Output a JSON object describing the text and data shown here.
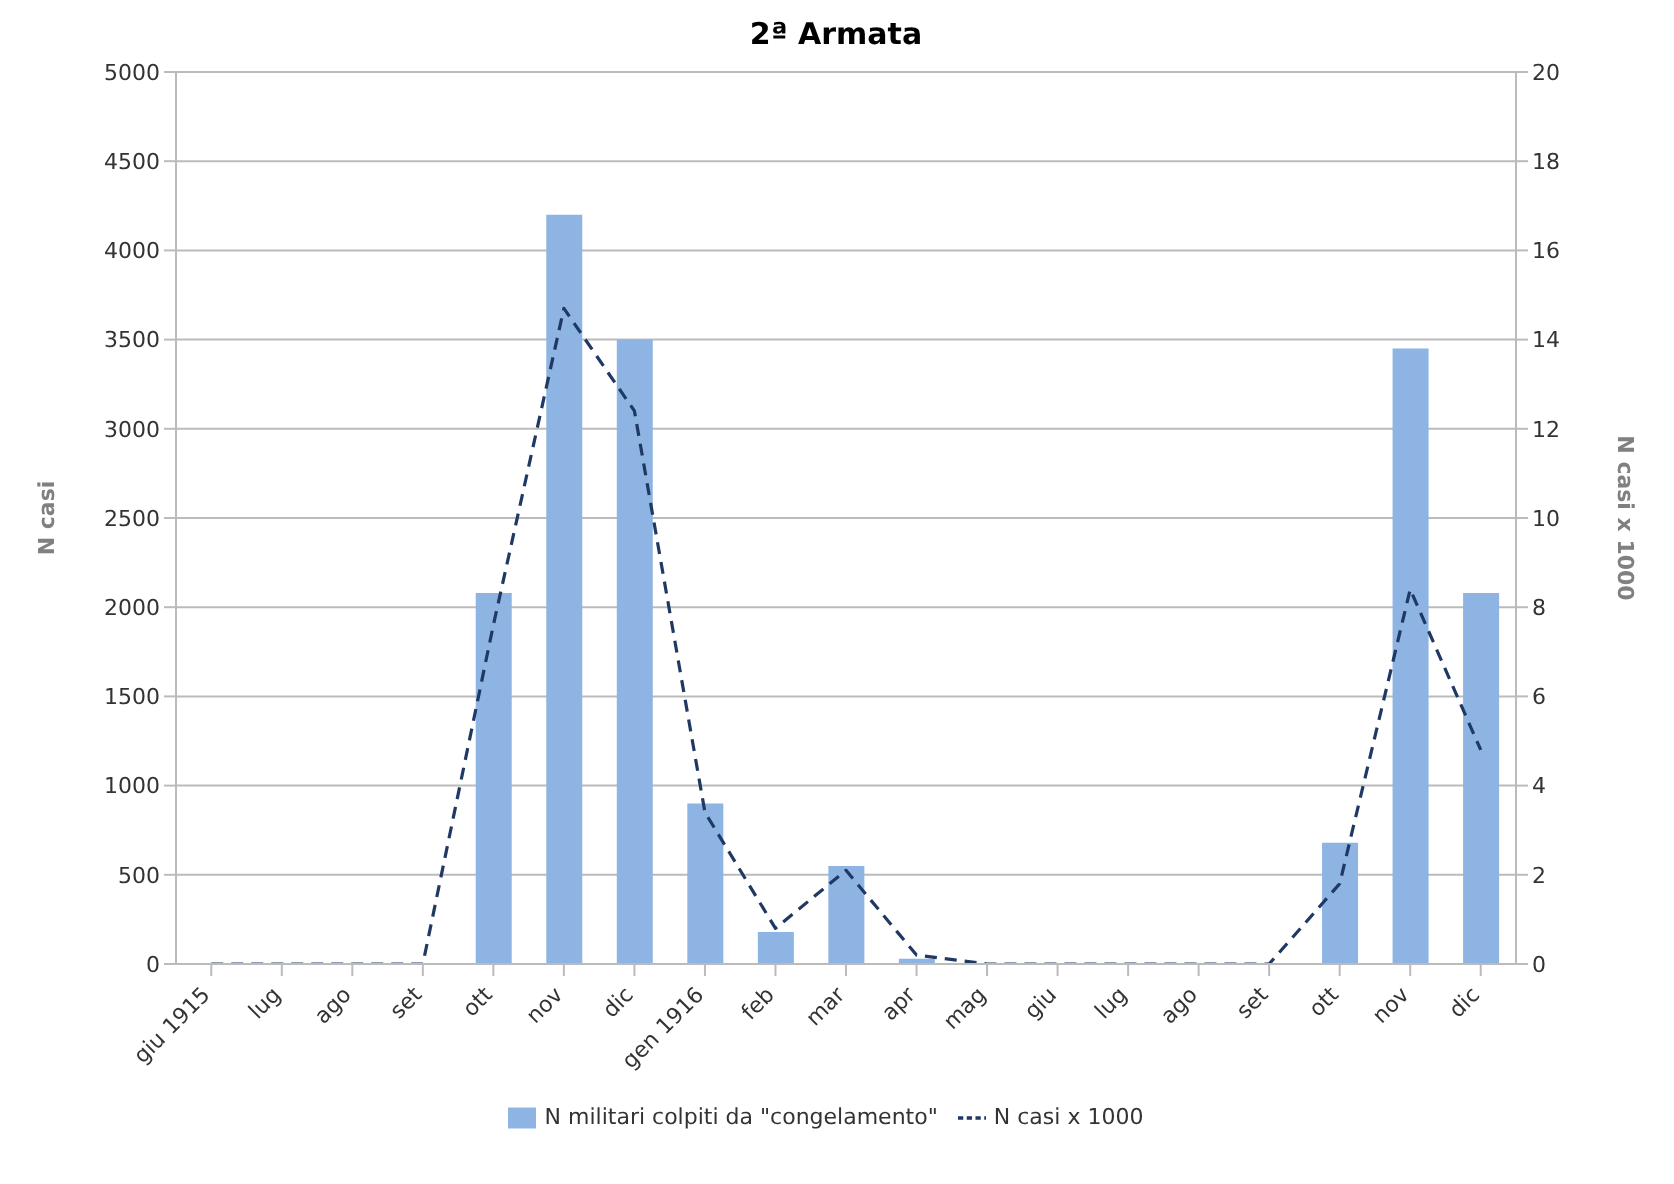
{
  "chart_data": {
    "type": "bar",
    "title": "2ª Armata",
    "ylabel": "N casi",
    "y2label": "N casi x 1000",
    "categories": [
      "giu 1915",
      "lug",
      "ago",
      "set",
      "ott",
      "nov",
      "dic",
      "gen 1916",
      "feb",
      "mar",
      "apr",
      "mag",
      "giu",
      "lug",
      "ago",
      "set",
      "ott",
      "nov",
      "dic"
    ],
    "series": [
      {
        "name": "N militari colpiti da \"congelamento\"",
        "color": "#8db4e2",
        "values": [
          0,
          0,
          0,
          0,
          2080,
          4200,
          3500,
          900,
          180,
          550,
          30,
          0,
          0,
          0,
          0,
          0,
          680,
          3450,
          2080
        ]
      },
      {
        "name": "N casi x 1000",
        "type": "line",
        "axis": "y2",
        "color": "#1f3864",
        "line_style": "dashed",
        "marker": "none",
        "values": [
          0,
          0,
          0,
          0,
          7.6,
          14.7,
          12.4,
          3.4,
          0.8,
          2.1,
          0.2,
          0,
          0,
          0,
          0,
          0,
          1.8,
          8.4,
          4.8
        ]
      }
    ],
    "ylim": [
      0,
      5000
    ],
    "yticks": [
      0,
      500,
      1000,
      1500,
      2000,
      2500,
      3000,
      3500,
      4000,
      4500,
      5000
    ],
    "y2lim": [
      0,
      20
    ],
    "y2ticks": [
      0,
      2,
      4,
      6,
      8,
      10,
      12,
      14,
      16,
      18,
      20
    ],
    "grid": "y",
    "legend": "bottom"
  }
}
